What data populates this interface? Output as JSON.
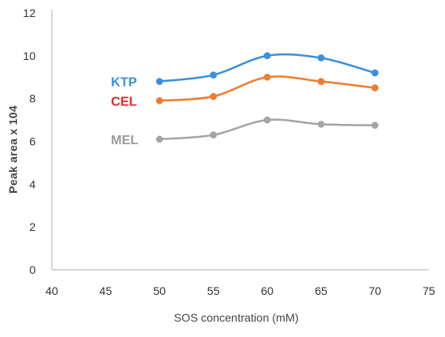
{
  "chart_data": {
    "type": "line",
    "x": [
      50,
      55,
      60,
      65,
      70
    ],
    "series": [
      {
        "name": "KTP",
        "color": "#3B8FDB",
        "values": [
          8.8,
          9.1,
          10.0,
          9.9,
          9.2
        ]
      },
      {
        "name": "CEL",
        "color": "#ED7D31",
        "values": [
          7.9,
          8.1,
          9.0,
          8.8,
          8.5
        ]
      },
      {
        "name": "MEL",
        "color": "#A5A5A5",
        "values": [
          6.1,
          6.3,
          7.0,
          6.8,
          6.75
        ]
      }
    ],
    "series_label_colors": {
      "KTP": "#3B8FDB",
      "CEL": "#E3262C",
      "MEL": "#9B9B9B"
    },
    "xlabel": "SOS concentration (mM)",
    "ylabel": "Peak area x 104",
    "xlim": [
      40,
      75
    ],
    "ylim": [
      0,
      12
    ],
    "xticks": [
      "40",
      "45",
      "50",
      "55",
      "60",
      "65",
      "70",
      "75"
    ],
    "yticks": [
      "0",
      "2",
      "4",
      "6",
      "8",
      "10",
      "12"
    ],
    "grid": false,
    "axis_color": "#c8c8c8",
    "smooth": true
  }
}
